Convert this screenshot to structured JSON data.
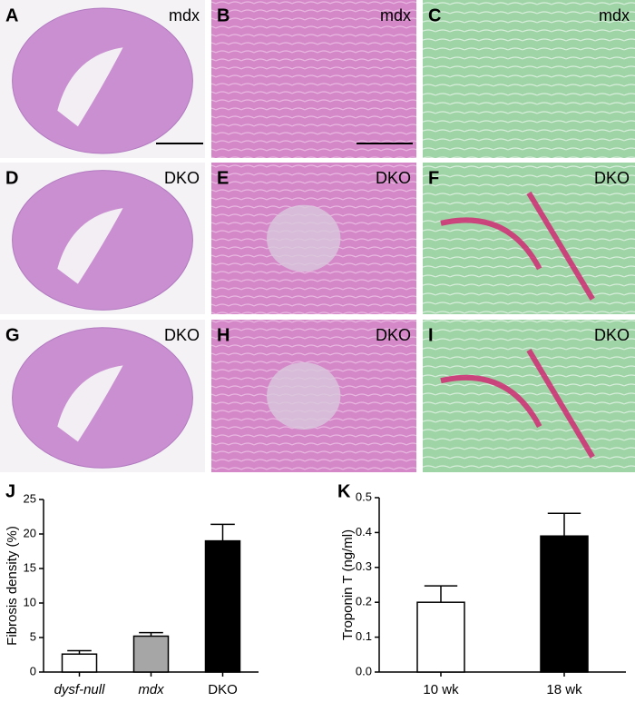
{
  "panels": [
    {
      "letter": "A",
      "label": "mdx"
    },
    {
      "letter": "B",
      "label": "mdx"
    },
    {
      "letter": "C",
      "label": "mdx"
    },
    {
      "letter": "D",
      "label": "DKO"
    },
    {
      "letter": "E",
      "label": "DKO"
    },
    {
      "letter": "F",
      "label": "DKO"
    },
    {
      "letter": "G",
      "label": "DKO"
    },
    {
      "letter": "H",
      "label": "DKO"
    },
    {
      "letter": "I",
      "label": "DKO"
    }
  ],
  "chart_data": [
    {
      "type": "bar",
      "panel_letter": "J",
      "y_label": "Fibrosis density (%)",
      "categories": [
        "dysf-null",
        "mdx",
        "DKO"
      ],
      "values": [
        2.6,
        5.2,
        19
      ],
      "errors": [
        0.5,
        0.5,
        2.4
      ],
      "colors": [
        "#ffffff",
        "#a6a6a6",
        "#000000"
      ],
      "ylim": [
        0,
        25
      ],
      "yticks": [
        0,
        5,
        10,
        15,
        20,
        25
      ]
    },
    {
      "type": "bar",
      "panel_letter": "K",
      "y_label": "Troponin T (ng/ml)",
      "categories": [
        "10 wk",
        "18 wk"
      ],
      "values": [
        0.2,
        0.39
      ],
      "errors": [
        0.047,
        0.065
      ],
      "colors": [
        "#ffffff",
        "#000000"
      ],
      "ylim": [
        0,
        0.5
      ],
      "yticks": [
        {
          "value": 0,
          "label": "0.0"
        },
        0.1,
        0.2,
        0.3,
        0.4,
        0.5
      ]
    }
  ]
}
